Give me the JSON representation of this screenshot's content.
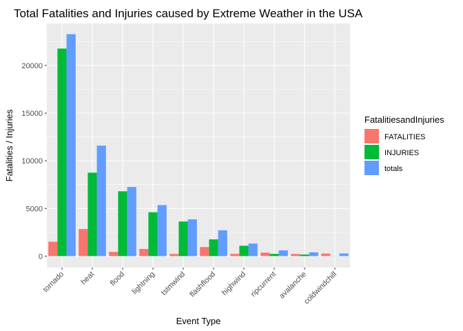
{
  "chart_data": {
    "type": "bar",
    "title": "Total Fatalities and Injuries caused by Extreme Weather in the USA",
    "xlabel": "Event Type",
    "ylabel": "Fatalities / Injuries",
    "categories": [
      "tornado",
      "heat",
      "flood",
      "lightning",
      "tstmwind",
      "flashflood",
      "highwind",
      "ripcurrent",
      "avalanche",
      "coldwindchill"
    ],
    "series": [
      {
        "name": "FATALITIES",
        "color": "#F8766D",
        "values": [
          1511,
          2840,
          444,
          750,
          227,
          951,
          235,
          368,
          224,
          265
        ]
      },
      {
        "name": "INJURIES",
        "color": "#00BA38",
        "values": [
          21765,
          8750,
          6800,
          4600,
          3631,
          1755,
          1083,
          232,
          170,
          12
        ]
      },
      {
        "name": "totals",
        "color": "#619CFF",
        "values": [
          23276,
          11590,
          7244,
          5350,
          3858,
          2706,
          1318,
          600,
          394,
          277
        ]
      }
    ],
    "yticks": [
      0,
      5000,
      10000,
      15000,
      20000
    ],
    "ylim": [
      -1200,
      24400
    ],
    "legend": {
      "title": "FatalitiesandInjuries",
      "position": "right"
    },
    "grid": true
  }
}
